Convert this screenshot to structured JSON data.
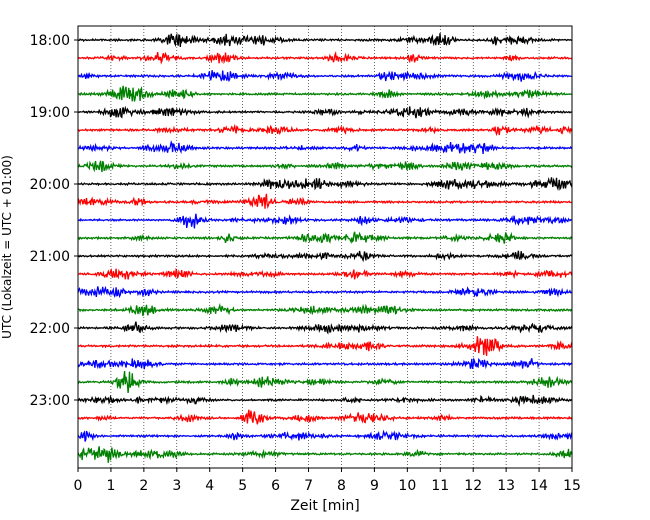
{
  "chart_data": {
    "type": "line",
    "xlabel": "Zeit  [min]",
    "ylabel": "UTC (Lokalzeit = UTC + 01:00)",
    "xlim": [
      0,
      15
    ],
    "x_ticks": [
      "0",
      "1",
      "2",
      "3",
      "4",
      "5",
      "6",
      "7",
      "8",
      "9",
      "10",
      "11",
      "12",
      "13",
      "14",
      "15"
    ],
    "y_tick_labels": [
      "18:00",
      "19:00",
      "20:00",
      "21:00",
      "22:00",
      "23:00"
    ],
    "grid": "vertical-dotted",
    "trace_colors": [
      "#000000",
      "#ff0000",
      "#0000ff",
      "#008000"
    ],
    "traces": [
      {
        "start": "18:00",
        "color": "#000000"
      },
      {
        "start": "18:15",
        "color": "#ff0000"
      },
      {
        "start": "18:30",
        "color": "#0000ff"
      },
      {
        "start": "18:45",
        "color": "#008000"
      },
      {
        "start": "19:00",
        "color": "#000000"
      },
      {
        "start": "19:15",
        "color": "#ff0000"
      },
      {
        "start": "19:30",
        "color": "#0000ff"
      },
      {
        "start": "19:45",
        "color": "#008000"
      },
      {
        "start": "20:00",
        "color": "#000000"
      },
      {
        "start": "20:15",
        "color": "#ff0000"
      },
      {
        "start": "20:30",
        "color": "#0000ff"
      },
      {
        "start": "20:45",
        "color": "#008000"
      },
      {
        "start": "21:00",
        "color": "#000000"
      },
      {
        "start": "21:15",
        "color": "#ff0000"
      },
      {
        "start": "21:30",
        "color": "#0000ff"
      },
      {
        "start": "21:45",
        "color": "#008000"
      },
      {
        "start": "22:00",
        "color": "#000000"
      },
      {
        "start": "22:15",
        "color": "#ff0000"
      },
      {
        "start": "22:30",
        "color": "#0000ff"
      },
      {
        "start": "22:45",
        "color": "#008000"
      },
      {
        "start": "23:00",
        "color": "#000000"
      },
      {
        "start": "23:15",
        "color": "#ff0000"
      },
      {
        "start": "23:30",
        "color": "#0000ff"
      },
      {
        "start": "23:45",
        "color": "#008000"
      }
    ]
  }
}
